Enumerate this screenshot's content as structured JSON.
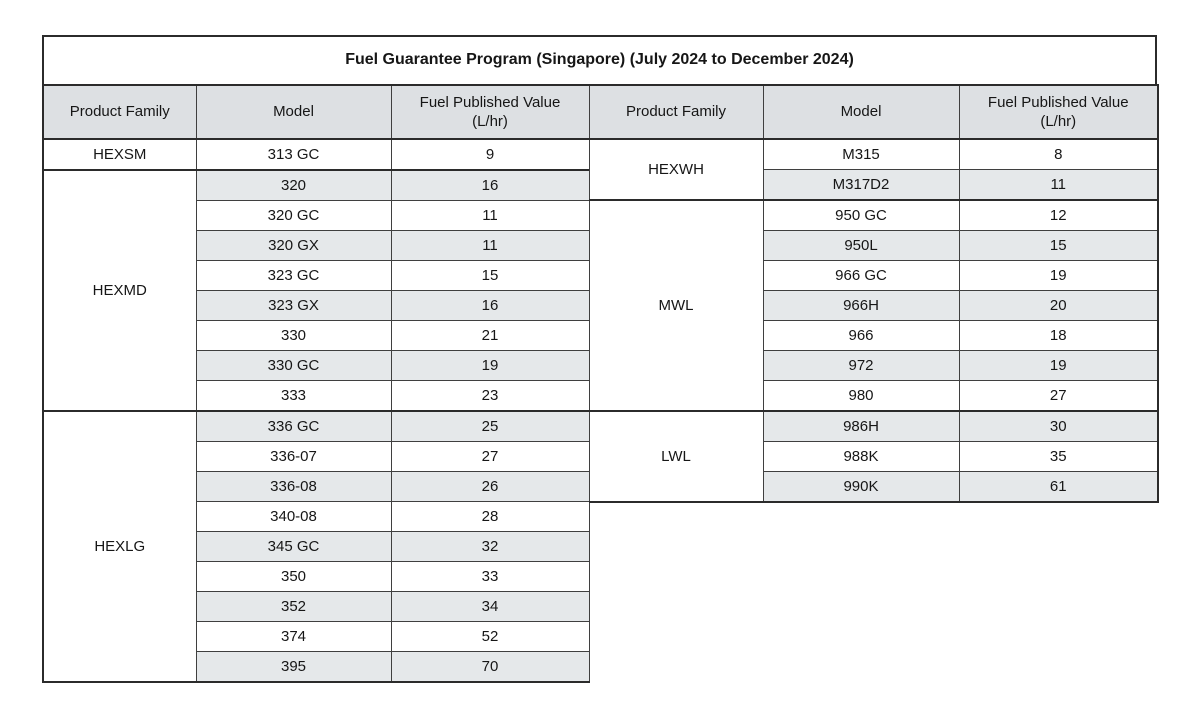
{
  "title": "Fuel Guarantee Program (Singapore) (July 2024 to December 2024)",
  "columns": [
    "Product Family",
    "Model",
    "Fuel Published Value (L/hr)"
  ],
  "unit": "L/hr",
  "colors": {
    "header_bg": "#dde0e3",
    "stripe_bg": "#e5e8ea",
    "border_thin": "#3f3f3f",
    "border_thick": "#2b2b2b",
    "text": "#161616"
  },
  "left_table": {
    "groups": [
      {
        "family": "HEXSM",
        "rows": [
          {
            "model": "313 GC",
            "value": "9"
          }
        ]
      },
      {
        "family": "HEXMD",
        "rows": [
          {
            "model": "320",
            "value": "16"
          },
          {
            "model": "320 GC",
            "value": "11"
          },
          {
            "model": "320 GX",
            "value": "11"
          },
          {
            "model": "323 GC",
            "value": "15"
          },
          {
            "model": "323 GX",
            "value": "16"
          },
          {
            "model": "330",
            "value": "21"
          },
          {
            "model": "330 GC",
            "value": "19"
          },
          {
            "model": "333",
            "value": "23"
          }
        ]
      },
      {
        "family": "HEXLG",
        "rows": [
          {
            "model": "336 GC",
            "value": "25"
          },
          {
            "model": "336-07",
            "value": "27"
          },
          {
            "model": "336-08",
            "value": "26"
          },
          {
            "model": "340-08",
            "value": "28"
          },
          {
            "model": "345 GC",
            "value": "32"
          },
          {
            "model": "350",
            "value": "33"
          },
          {
            "model": "352",
            "value": "34"
          },
          {
            "model": "374",
            "value": "52"
          },
          {
            "model": "395",
            "value": "70"
          }
        ]
      }
    ]
  },
  "right_table": {
    "groups": [
      {
        "family": "HEXWH",
        "rows": [
          {
            "model": "M315",
            "value": "8"
          },
          {
            "model": "M317D2",
            "value": "11"
          }
        ]
      },
      {
        "family": "MWL",
        "rows": [
          {
            "model": "950 GC",
            "value": "12"
          },
          {
            "model": "950L",
            "value": "15"
          },
          {
            "model": "966 GC",
            "value": "19"
          },
          {
            "model": "966H",
            "value": "20"
          },
          {
            "model": "966",
            "value": "18"
          },
          {
            "model": "972",
            "value": "19"
          },
          {
            "model": "980",
            "value": "27"
          }
        ]
      },
      {
        "family": "LWL",
        "rows": [
          {
            "model": "986H",
            "value": "30"
          },
          {
            "model": "988K",
            "value": "35"
          },
          {
            "model": "990K",
            "value": "61"
          }
        ]
      }
    ]
  }
}
